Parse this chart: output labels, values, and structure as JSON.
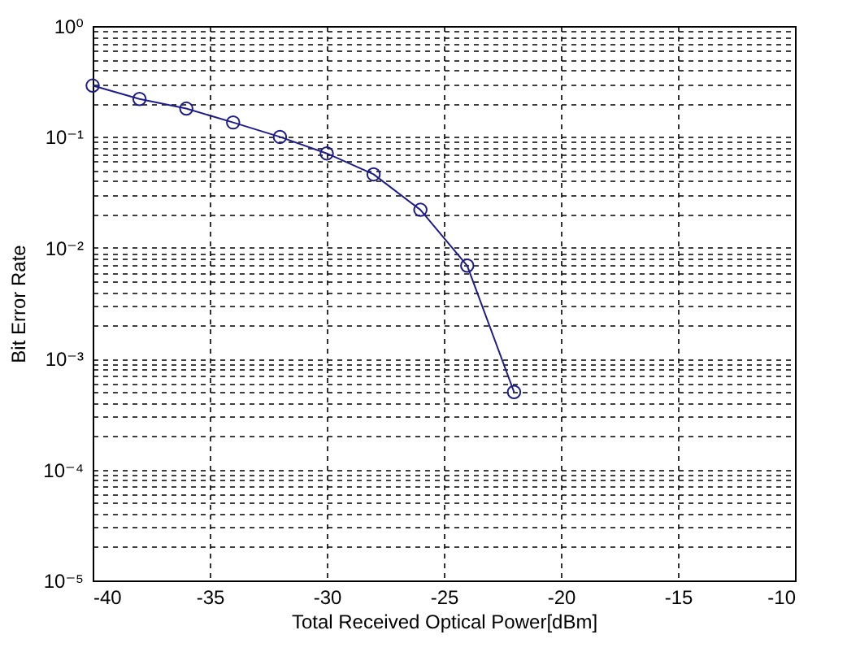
{
  "chart_data": {
    "type": "line",
    "xlabel": "Total Received Optical Power[dBm]",
    "ylabel": "Bit Error Rate",
    "x": [
      -40,
      -38,
      -36,
      -34,
      -32,
      -30,
      -28,
      -26,
      -24,
      -22
    ],
    "series": [
      {
        "color": "#1c1c8c",
        "values": [
          0.29,
          0.22,
          0.18,
          0.135,
          0.1,
          0.071,
          0.046,
          0.022,
          0.0069,
          0.0005
        ]
      }
    ],
    "xlim": [
      -40,
      -10
    ],
    "xticks": [
      -40,
      -35,
      -30,
      -25,
      -20,
      -15,
      -10
    ],
    "ylim": [
      1e-05,
      1
    ],
    "log": "y",
    "yticks": [
      {
        "value": 1e-05,
        "label": "10⁻⁵"
      },
      {
        "value": 2e-05,
        "label": null
      },
      {
        "value": 3e-05,
        "label": null
      },
      {
        "value": 4e-05,
        "label": null
      },
      {
        "value": 5e-05,
        "label": null
      },
      {
        "value": 6e-05,
        "label": null
      },
      {
        "value": 7e-05,
        "label": null
      },
      {
        "value": 8e-05,
        "label": null
      },
      {
        "value": 9e-05,
        "label": null
      },
      {
        "value": 0.0001,
        "label": "10⁻⁴"
      },
      {
        "value": 0.0002,
        "label": null
      },
      {
        "value": 0.0003,
        "label": null
      },
      {
        "value": 0.0004,
        "label": null
      },
      {
        "value": 0.0005,
        "label": null
      },
      {
        "value": 0.0006,
        "label": null
      },
      {
        "value": 0.0007,
        "label": null
      },
      {
        "value": 0.0008,
        "label": null
      },
      {
        "value": 0.0009,
        "label": null
      },
      {
        "value": 0.001,
        "label": "10⁻³"
      },
      {
        "value": 0.002,
        "label": null
      },
      {
        "value": 0.003,
        "label": null
      },
      {
        "value": 0.004,
        "label": null
      },
      {
        "value": 0.005,
        "label": null
      },
      {
        "value": 0.006,
        "label": null
      },
      {
        "value": 0.007,
        "label": null
      },
      {
        "value": 0.008,
        "label": null
      },
      {
        "value": 0.009,
        "label": null
      },
      {
        "value": 0.01,
        "label": "10⁻²"
      },
      {
        "value": 0.02,
        "label": null
      },
      {
        "value": 0.03,
        "label": null
      },
      {
        "value": 0.04,
        "label": null
      },
      {
        "value": 0.05,
        "label": null
      },
      {
        "value": 0.06,
        "label": null
      },
      {
        "value": 0.07,
        "label": null
      },
      {
        "value": 0.08,
        "label": null
      },
      {
        "value": 0.09,
        "label": null
      },
      {
        "value": 0.1,
        "label": "10⁻¹"
      },
      {
        "value": 0.2,
        "label": null
      },
      {
        "value": 0.3,
        "label": null
      },
      {
        "value": 0.4,
        "label": null
      },
      {
        "value": 0.5,
        "label": null
      },
      {
        "value": 0.6,
        "label": null
      },
      {
        "value": 0.7,
        "label": null
      },
      {
        "value": 0.8,
        "label": null
      },
      {
        "value": 0.9,
        "label": null
      },
      {
        "value": 1,
        "label": "10⁰"
      }
    ],
    "grid": true,
    "marker": "circle",
    "line_style": "solid"
  }
}
